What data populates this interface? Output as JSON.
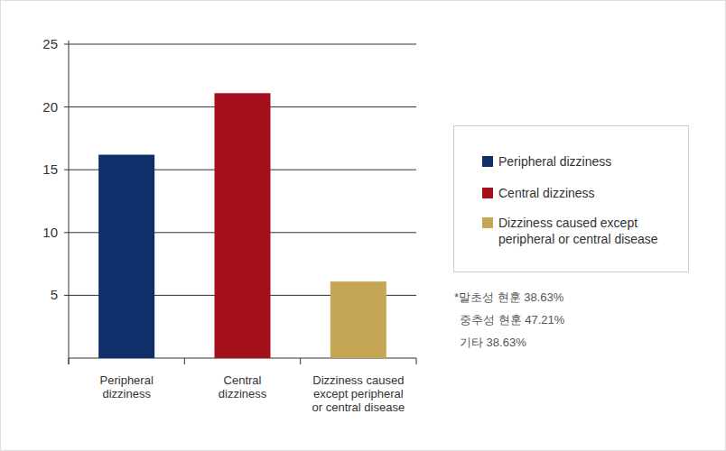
{
  "chart_data": {
    "type": "bar",
    "categories": [
      "Peripheral\ndizziness",
      "Central\ndizziness",
      "Dizziness caused\nexcept peripheral\nor central disease"
    ],
    "values": [
      16.2,
      21.1,
      6.1
    ],
    "colors": [
      "#0f2f6b",
      "#a50f1c",
      "#c4a654"
    ],
    "ylim": [
      0,
      25
    ],
    "yticks": [
      5,
      10,
      15,
      20,
      25
    ],
    "grid": true,
    "legend": "right",
    "annotations": [
      "*말초성 현훈 38.63%",
      "중추성 현훈 47.21%",
      "기타 38.63%"
    ]
  }
}
